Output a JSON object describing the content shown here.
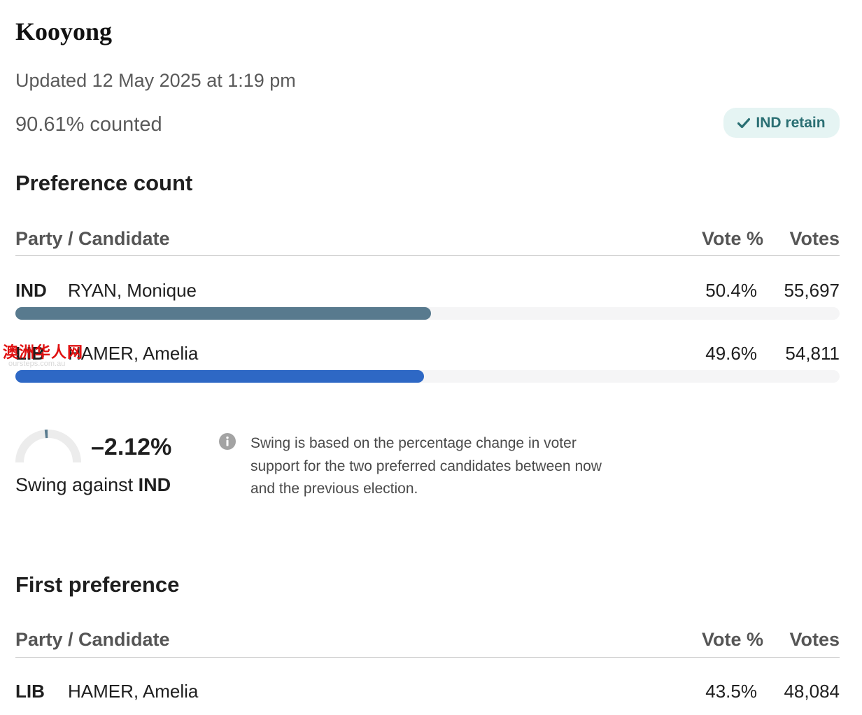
{
  "seat": {
    "title": "Kooyong",
    "updated": "Updated 12 May 2025 at 1:19 pm",
    "counted": "90.61% counted",
    "badge": {
      "icon": "check-icon",
      "label": "IND retain",
      "color": "#2a6f73"
    }
  },
  "preference_count": {
    "title": "Preference count",
    "headers": {
      "candidate": "Party / Candidate",
      "pct": "Vote %",
      "votes": "Votes"
    },
    "rows": [
      {
        "party": "IND",
        "name": "RYAN, Monique",
        "pct": "50.4%",
        "votes": "55,697",
        "share": 0.504,
        "color": "#587a8e"
      },
      {
        "party": "LIB",
        "name": "HAMER, Amelia",
        "pct": "49.6%",
        "votes": "54,811",
        "share": 0.496,
        "color": "#2e68c5"
      }
    ]
  },
  "swing": {
    "value": "–2.12%",
    "label_prefix": "Swing against ",
    "label_party": "IND",
    "gauge_value": -2.12,
    "info_icon": "info-icon",
    "info_text": "Swing is based on the percentage change in voter support for the two preferred candidates between now and the previous election."
  },
  "watermark": {
    "text": "澳洲华人网",
    "subtext": "oursteps.com.au"
  },
  "first_preference": {
    "title": "First preference",
    "headers": {
      "candidate": "Party / Candidate",
      "pct": "Vote %",
      "votes": "Votes"
    },
    "rows": [
      {
        "party": "LIB",
        "name": "HAMER, Amelia",
        "pct": "43.5%",
        "votes": "48,084"
      }
    ]
  }
}
